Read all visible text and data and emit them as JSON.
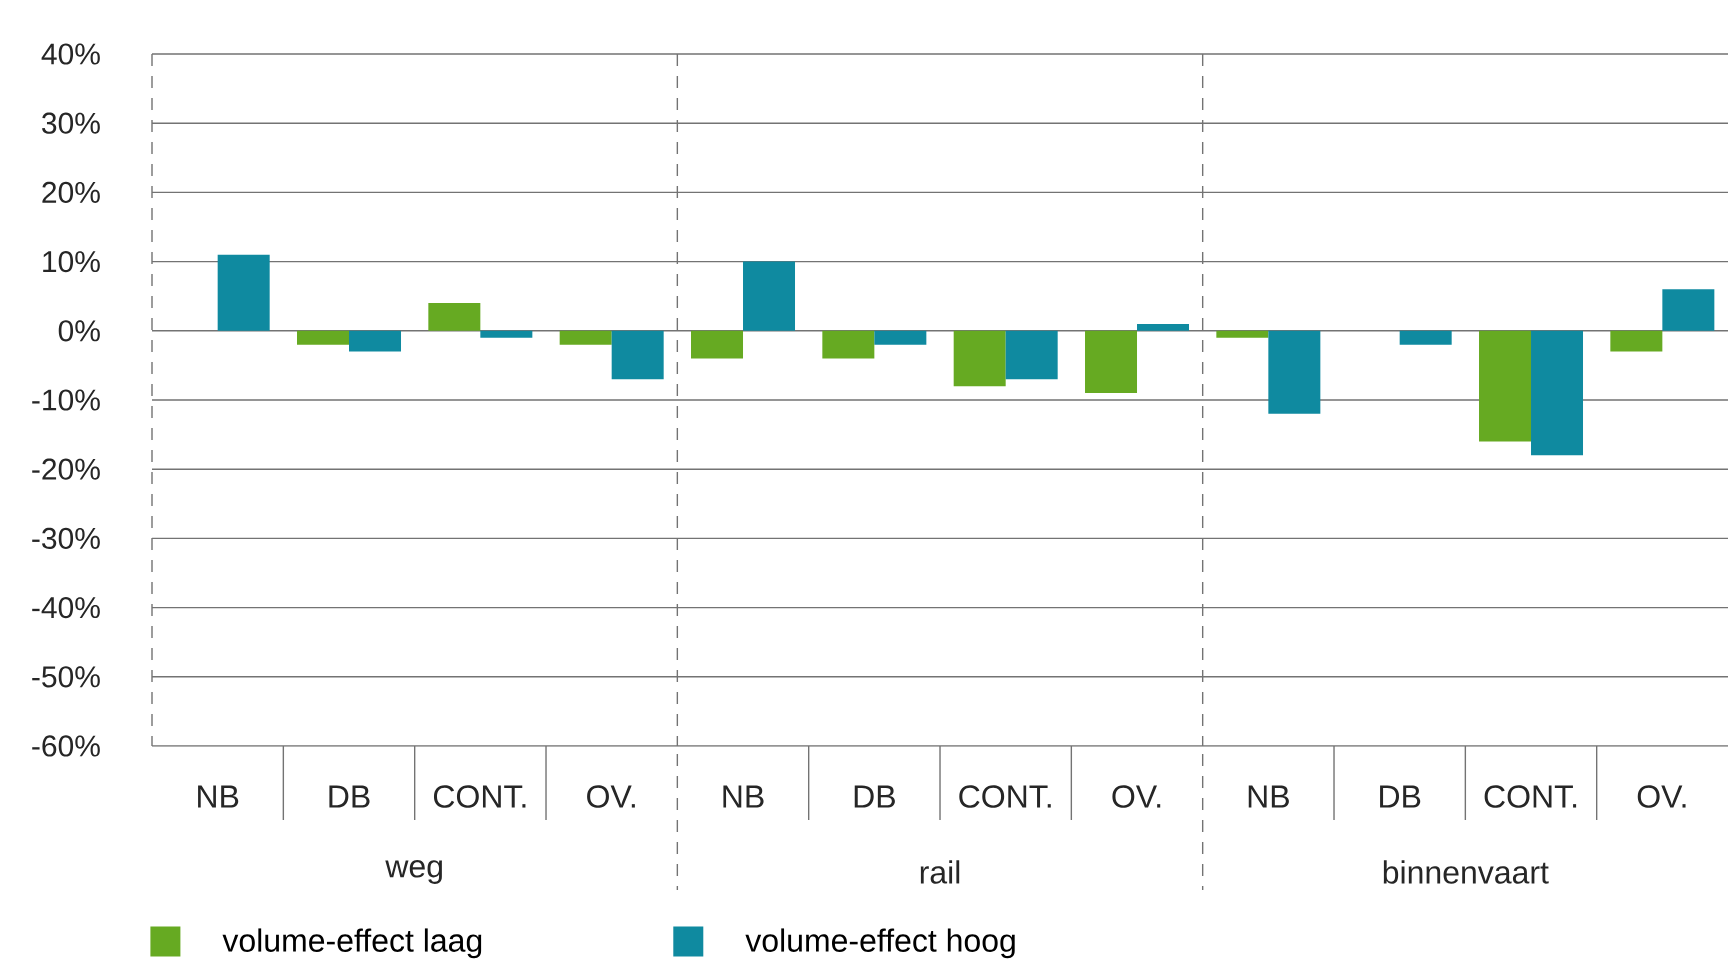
{
  "chart_data": {
    "type": "bar",
    "categories": [
      "NB",
      "DB",
      "CONT.",
      "OV.",
      "NB",
      "DB",
      "CONT.",
      "OV.",
      "NB",
      "DB",
      "CONT.",
      "OV."
    ],
    "series": [
      {
        "name": "volume-effect laag",
        "color": "#66aa22",
        "values": [
          null,
          -2,
          4,
          -2,
          -4,
          -4,
          -8,
          -9,
          -1,
          null,
          -16,
          -3
        ]
      },
      {
        "name": "volume-effect hoog",
        "color": "#0f8aa0",
        "values": [
          11,
          -3,
          -1,
          -7,
          10,
          -2,
          -7,
          1,
          -12,
          -2,
          -18,
          6
        ]
      }
    ],
    "ylim": [
      -60,
      40
    ],
    "yticks": [
      {
        "value": -60,
        "label": "-60%"
      },
      {
        "value": -50,
        "label": "-50%"
      },
      {
        "value": -40,
        "label": "-40%"
      },
      {
        "value": -30,
        "label": "-30%"
      },
      {
        "value": -20,
        "label": "-20%"
      },
      {
        "value": -10,
        "label": "-10%"
      },
      {
        "value": 0,
        "label": "0%"
      },
      {
        "value": 10,
        "label": "10%"
      },
      {
        "value": 20,
        "label": "20%"
      },
      {
        "value": 30,
        "label": "30%"
      },
      {
        "value": 40,
        "label": "40%"
      }
    ],
    "grid": "y",
    "legend": "bottom",
    "annotations": [
      "weg",
      "rail",
      "binnenvaart"
    ]
  }
}
